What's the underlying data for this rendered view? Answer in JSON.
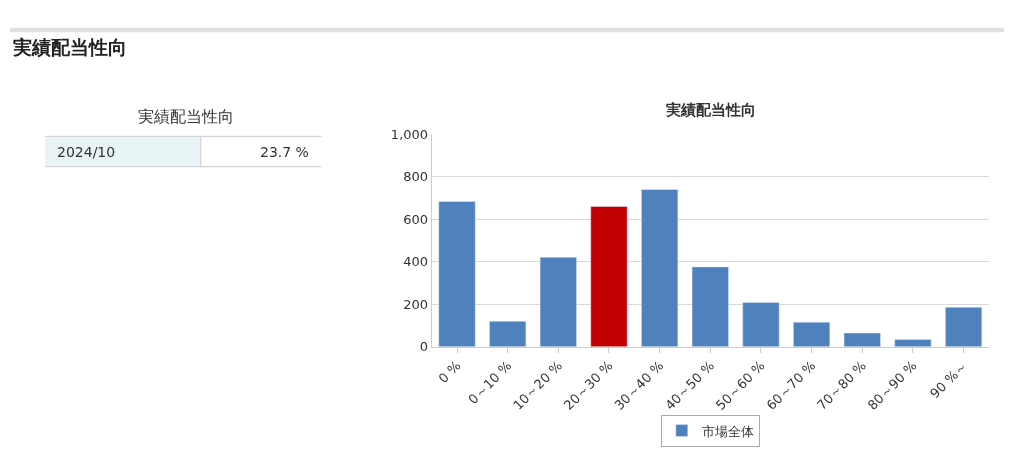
{
  "chart_data": [
    {
      "type": "other",
      "title": "実績配当性向",
      "subtitle": "実績配当性向",
      "annotations": [
        "2024/10",
        "23.7 %"
      ]
    },
    {
      "type": "bar",
      "title": "実績配当性向",
      "categories": [
        "0 %",
        "0～10 %",
        "10～20 %",
        "20～30 %",
        "30～40 %",
        "40～50 %",
        "50～60 %",
        "60～70 %",
        "70～80 %",
        "80～90 %",
        "90 %～"
      ],
      "series": [
        {
          "name": "市場全体",
          "color": "#4f81bd",
          "values": [
            684,
            120,
            421,
            null,
            740,
            376,
            209,
            116,
            65,
            35,
            186
          ]
        },
        {
          "color": "#c00000",
          "values": [
            null,
            null,
            null,
            660,
            null,
            null,
            null,
            null,
            null,
            null,
            null
          ]
        }
      ],
      "ylim": [
        0,
        1000
      ],
      "yticks": [
        0,
        200,
        400,
        600,
        800,
        {
          "value": 1000,
          "label": "1,000"
        }
      ],
      "grid": "y",
      "legend": "bottom"
    }
  ]
}
